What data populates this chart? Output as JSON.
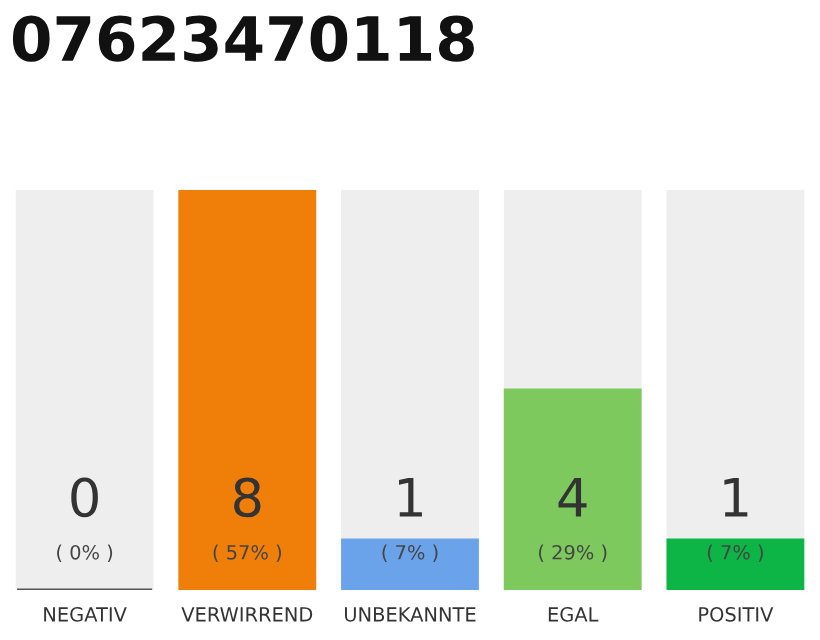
{
  "chart_data": {
    "type": "bar",
    "title": "07623470118",
    "categories": [
      "NEGATIV",
      "VERWIRREND",
      "UNBEKANNTE",
      "EGAL",
      "POSITIV"
    ],
    "values": [
      0,
      8,
      1,
      4,
      1
    ],
    "colors": [
      "#555555",
      "#f07f0a",
      "#6ba3ea",
      "#7dc95e",
      "#0cb545"
    ],
    "value_labels": [
      "0\n( 0% )",
      "8\n( 57% )",
      "1\n( 7% )",
      "4\n( 29% )",
      "1\n( 7% )"
    ],
    "grid": false,
    "legend": false
  }
}
